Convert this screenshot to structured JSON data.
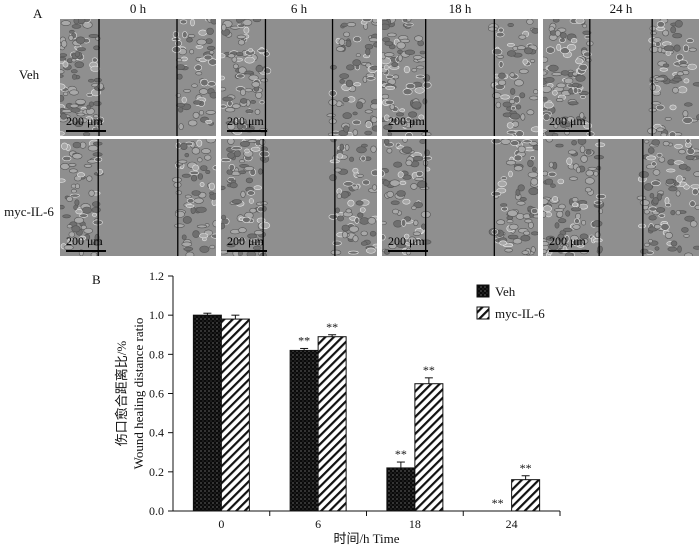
{
  "figure": {
    "panel_a_label": "A",
    "panel_b_label": "B",
    "time_columns": [
      "0 h",
      "6 h",
      "18 h",
      "24 h"
    ],
    "row_labels": [
      "Veh",
      "myc-IL-6"
    ],
    "scale_bar_label": "200 μm",
    "wound_gap_fraction": [
      [
        0.5,
        0.43,
        0.44,
        0.4
      ],
      [
        0.51,
        0.46,
        0.44,
        0.28
      ]
    ]
  },
  "chart_data": {
    "type": "bar",
    "categories": [
      "0",
      "6",
      "18",
      "24"
    ],
    "series": [
      {
        "name": "Veh",
        "values": [
          1.0,
          0.82,
          0.22,
          0.0
        ],
        "errors": [
          0.01,
          0.01,
          0.03,
          0.0
        ],
        "significance": [
          "",
          "**",
          "**",
          "**"
        ],
        "fill": "dotted-black"
      },
      {
        "name": "myc-IL-6",
        "values": [
          0.98,
          0.89,
          0.65,
          0.16
        ],
        "errors": [
          0.02,
          0.01,
          0.03,
          0.02
        ],
        "significance": [
          "",
          "**",
          "**",
          "**"
        ],
        "fill": "diagonal-hatch"
      }
    ],
    "xlabel": "时间/h  Time",
    "ylabel_cn": "伤口愈合距离比/%",
    "ylabel_en": "Wound healing distance ratio",
    "ylim": [
      0,
      1.2
    ],
    "yticks": [
      "0.0",
      "0.2",
      "0.4",
      "0.6",
      "0.8",
      "1.0",
      "1.2"
    ],
    "legend_position": "top-right",
    "grid": false
  }
}
